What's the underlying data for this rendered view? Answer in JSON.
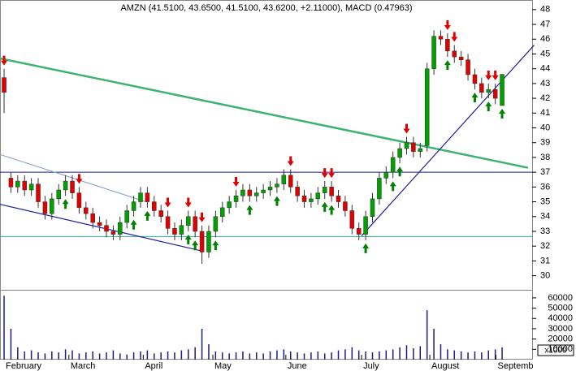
{
  "chart_data": {
    "type": "candlestick",
    "title": "AMZN (41.5100, 43.6500, 41.5100, 43.6200, +2.11000), MACD (0.47963)",
    "up_color": "#00a000",
    "down_color": "#e00000",
    "open": [
      43.4,
      36.6,
      36.0,
      36.4,
      35.8,
      36.2,
      35.0,
      34.2,
      35.2,
      35.8,
      36.4,
      35.6,
      34.6,
      34.2,
      33.6,
      33.4,
      33.0,
      32.8,
      33.6,
      34.4,
      35.0,
      35.6,
      35.0,
      34.4,
      34.0,
      33.2,
      32.8,
      33.4,
      34.0,
      33.0,
      31.6,
      33.0,
      34.0,
      34.6,
      35.0,
      35.4,
      35.8,
      35.4,
      35.6,
      35.8,
      36.0,
      36.2,
      36.8,
      36.0,
      35.4,
      35.0,
      35.2,
      35.6,
      36.0,
      35.4,
      35.0,
      34.4,
      33.2,
      32.8,
      34.0,
      35.2,
      36.6,
      37.0,
      38.0,
      38.6,
      39.0,
      38.4,
      38.8,
      44.0,
      46.2,
      46.0,
      45.2,
      44.8,
      44.6,
      43.6,
      43.0,
      42.4,
      42.6,
      41.51
    ],
    "high": [
      44.0,
      37.0,
      36.8,
      36.8,
      36.6,
      36.6,
      35.4,
      35.6,
      36.2,
      36.8,
      36.8,
      36.0,
      35.0,
      34.6,
      34.0,
      33.8,
      33.4,
      34.0,
      34.8,
      35.4,
      36.0,
      36.0,
      35.4,
      34.8,
      34.4,
      33.6,
      33.8,
      34.4,
      34.4,
      33.4,
      33.4,
      34.4,
      35.0,
      35.4,
      35.8,
      36.2,
      36.2,
      36.0,
      36.2,
      36.4,
      36.6,
      37.2,
      37.2,
      36.4,
      35.8,
      35.6,
      36.0,
      36.4,
      36.4,
      35.8,
      35.4,
      34.8,
      33.6,
      34.4,
      35.6,
      37.0,
      37.4,
      38.4,
      39.0,
      39.4,
      39.4,
      39.0,
      44.4,
      46.6,
      46.6,
      46.4,
      45.6,
      45.2,
      45.0,
      44.0,
      43.4,
      43.0,
      43.0,
      43.65
    ],
    "low": [
      41.0,
      35.6,
      35.6,
      35.4,
      35.4,
      34.6,
      33.8,
      33.8,
      34.8,
      35.4,
      35.2,
      34.2,
      33.8,
      33.2,
      33.0,
      32.6,
      32.4,
      32.4,
      33.2,
      34.0,
      34.6,
      34.6,
      34.0,
      33.6,
      32.8,
      32.4,
      32.4,
      33.0,
      32.6,
      30.8,
      31.2,
      32.6,
      33.6,
      34.2,
      34.6,
      35.0,
      35.0,
      35.0,
      35.2,
      35.4,
      35.6,
      35.8,
      35.6,
      35.0,
      34.6,
      34.6,
      34.8,
      35.2,
      35.0,
      34.6,
      34.0,
      32.8,
      32.4,
      32.4,
      33.6,
      34.8,
      36.2,
      36.6,
      37.6,
      38.2,
      38.0,
      38.0,
      38.4,
      43.6,
      45.6,
      44.8,
      44.4,
      44.2,
      43.2,
      42.6,
      42.0,
      42.0,
      41.6,
      41.51
    ],
    "close": [
      42.4,
      36.0,
      36.4,
      35.8,
      36.2,
      35.0,
      34.2,
      35.2,
      35.8,
      36.4,
      35.6,
      34.6,
      34.2,
      33.6,
      33.4,
      33.0,
      32.8,
      33.6,
      34.4,
      35.0,
      35.6,
      35.0,
      34.4,
      34.0,
      33.2,
      32.8,
      33.4,
      34.0,
      33.0,
      31.6,
      33.0,
      34.0,
      34.6,
      35.0,
      35.4,
      35.8,
      35.4,
      35.6,
      35.8,
      36.0,
      36.2,
      36.8,
      36.0,
      35.4,
      35.0,
      35.2,
      35.6,
      36.0,
      35.4,
      35.0,
      34.4,
      33.2,
      32.8,
      34.0,
      35.2,
      36.6,
      37.0,
      38.0,
      38.6,
      39.0,
      38.4,
      38.6,
      44.0,
      46.2,
      46.0,
      45.2,
      44.8,
      44.6,
      43.6,
      43.0,
      42.4,
      42.6,
      42.0,
      43.62
    ],
    "ylim": [
      29.1,
      48.65
    ],
    "yticks": [
      30,
      31,
      32,
      33,
      34,
      35,
      36,
      37,
      38,
      39,
      40,
      41,
      42,
      43,
      44,
      45,
      46,
      47,
      48
    ],
    "xlim": [
      -0.6,
      77.4
    ],
    "xticks": [
      {
        "value": 0,
        "label": "February"
      },
      {
        "value": 9.5,
        "label": "March"
      },
      {
        "value": 20.4,
        "label": "April"
      },
      {
        "value": 30.6,
        "label": "May"
      },
      {
        "value": 41.3,
        "label": "June"
      },
      {
        "value": 52.4,
        "label": "July"
      },
      {
        "value": 62.4,
        "label": "August"
      },
      {
        "value": 72.1,
        "label": "Septemb"
      }
    ],
    "trendlines": [
      {
        "color": "#3cb371",
        "x": [
          -0.6,
          76.8
        ],
        "y": [
          44.7,
          37.3
        ]
      },
      {
        "color": "#1c1ca0",
        "x": [
          -0.6,
          29.2
        ],
        "y": [
          34.83,
          31.65
        ]
      },
      {
        "color": "#8fa8c8",
        "x": [
          -0.6,
          20.8
        ],
        "y": [
          38.2,
          35.0
        ]
      },
      {
        "color": "#1c1ca0",
        "x": [
          52.4,
          77.7
        ],
        "y": [
          32.7,
          45.6
        ]
      }
    ],
    "hlines": [
      {
        "color": "#1c1ca0",
        "value": 37.0
      },
      {
        "color": "#3aa39a",
        "value": 32.65
      }
    ],
    "sell_signals": [
      0,
      11,
      24,
      27,
      29,
      34,
      42,
      47,
      48,
      59,
      65,
      66,
      71,
      72
    ],
    "buy_signals": [
      9,
      19,
      21,
      27,
      28,
      31,
      36,
      40,
      47,
      48,
      53,
      57,
      58,
      65,
      69,
      71,
      73
    ],
    "volume": {
      "color": "#1c1c80",
      "values": [
        62000,
        30000,
        12000,
        8000,
        9000,
        7000,
        6000,
        8000,
        7000,
        10000,
        9000,
        6000,
        7000,
        8000,
        6000,
        7000,
        9000,
        6000,
        5000,
        7000,
        8000,
        9000,
        6000,
        7000,
        8000,
        7000,
        9000,
        10000,
        12000,
        30000,
        15000,
        8000,
        7000,
        6000,
        7000,
        8000,
        6000,
        7000,
        6000,
        8000,
        9000,
        10000,
        8000,
        7000,
        6000,
        7000,
        8000,
        6000,
        7000,
        9000,
        10000,
        12000,
        9000,
        8000,
        7000,
        8000,
        9000,
        10000,
        12000,
        14000,
        11000,
        13000,
        48000,
        30000,
        15000,
        10000,
        9000,
        8000,
        7000,
        8000,
        7000,
        9000,
        10000,
        12000
      ],
      "ylim": [
        0,
        67000
      ],
      "yticks": [
        10000,
        20000,
        30000,
        40000,
        50000,
        60000
      ],
      "unit_label": "x1000"
    }
  }
}
